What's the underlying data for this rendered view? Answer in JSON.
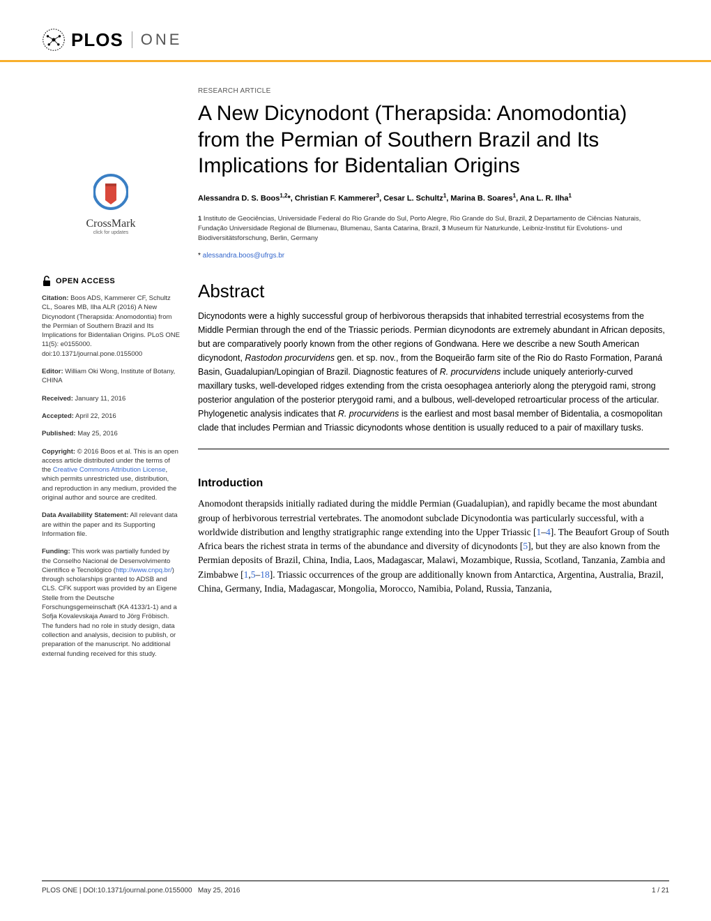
{
  "journal": {
    "logo_text": "PLOS",
    "name": "ONE"
  },
  "crossmark": {
    "label": "CrossMark",
    "sub": "click for updates"
  },
  "open_access": {
    "label": "OPEN ACCESS"
  },
  "sidebar": {
    "citation_label": "Citation:",
    "citation": " Boos ADS, Kammerer CF, Schultz CL, Soares MB, Ilha ALR (2016) A New Dicynodont (Therapsida: Anomodontia) from the Permian of Southern Brazil and Its Implications for Bidentalian Origins. PLoS ONE 11(5): e0155000. doi:10.1371/journal.pone.0155000",
    "editor_label": "Editor:",
    "editor": " William Oki Wong, Institute of Botany, CHINA",
    "received_label": "Received:",
    "received": " January 11, 2016",
    "accepted_label": "Accepted:",
    "accepted": " April 22, 2016",
    "published_label": "Published:",
    "published": " May 25, 2016",
    "copyright_label": "Copyright:",
    "copyright_pre": " © 2016 Boos et al. This is an open access article distributed under the terms of the ",
    "copyright_link": "Creative Commons Attribution License",
    "copyright_post": ", which permits unrestricted use, distribution, and reproduction in any medium, provided the original author and source are credited.",
    "data_label": "Data Availability Statement:",
    "data": " All relevant data are within the paper and its Supporting Information file.",
    "funding_label": "Funding:",
    "funding_pre": " This work was partially funded by the Conselho Nacional de Desenvolvimento Científico e Tecnológico (",
    "funding_link": "http://www.cnpq.br/",
    "funding_post": ") through scholarships granted to ADSB and CLS. CFK support was provided by an Eigene Stelle from the Deutsche Forschungsgemeinschaft (KA 4133/1-1) and a Sofja Kovalevskaja Award to Jörg Fröbisch. The funders had no role in study design, data collection and analysis, decision to publish, or preparation of the manuscript. No additional external funding received for this study."
  },
  "article": {
    "type": "RESEARCH ARTICLE",
    "title": "A New Dicynodont (Therapsida: Anomodontia) from the Permian of Southern Brazil and Its Implications for Bidentalian Origins",
    "authors_html": "Alessandra D. S. Boos<sup>1,2</sup>*, Christian F. Kammerer<sup>3</sup>, Cesar L. Schultz<sup>1</sup>, Marina B. Soares<sup>1</sup>, Ana L. R. Ilha<sup>1</sup>",
    "affiliations_html": "<b>1</b> Instituto de Geociências, Universidade Federal do Rio Grande do Sul, Porto Alegre, Rio Grande do Sul, Brazil, <b>2</b> Departamento de Ciências Naturais, Fundação Universidade Regional de Blumenau, Blumenau, Santa Catarina, Brazil, <b>3</b> Museum für Naturkunde, Leibniz-Institut für Evolutions- und Biodiversitätsforschung, Berlin, Germany",
    "corr_star": "* ",
    "corr_email": "alessandra.boos@ufrgs.br"
  },
  "abstract": {
    "heading": "Abstract",
    "text_html": "Dicynodonts were a highly successful group of herbivorous therapsids that inhabited terrestrial ecosystems from the Middle Permian through the end of the Triassic periods. Permian dicynodonts are extremely abundant in African deposits, but are comparatively poorly known from the other regions of Gondwana. Here we describe a new South American dicynodont, <i>Rastodon procurvidens</i> gen. et sp. nov., from the Boqueirão farm site of the Rio do Rasto Formation, Paraná Basin, Guadalupian/Lopingian of Brazil. Diagnostic features of <i>R. procurvidens</i> include uniquely anteriorly-curved maxillary tusks, well-developed ridges extending from the crista oesophagea anteriorly along the pterygoid rami, strong posterior angulation of the posterior pterygoid rami, and a bulbous, well-developed retroarticular process of the articular. Phylogenetic analysis indicates that <i>R. procurvidens</i> is the earliest and most basal member of Bidentalia, a cosmopolitan clade that includes Permian and Triassic dicynodonts whose dentition is usually reduced to a pair of maxillary tusks."
  },
  "intro": {
    "heading": "Introduction",
    "text_html": "Anomodont therapsids initially radiated during the middle Permian (Guadalupian), and rapidly became the most abundant group of herbivorous terrestrial vertebrates. The anomodont subclade Dicynodontia was particularly successful, with a worldwide distribution and lengthy stratigraphic range extending into the Upper Triassic [<a>1</a>–<a>4</a>]. The Beaufort Group of South Africa bears the richest strata in terms of the abundance and diversity of dicynodonts [<a>5</a>], but they are also known from the Permian deposits of Brazil, China, India, Laos, Madagascar, Malawi, Mozambique, Russia, Scotland, Tanzania, Zambia and Zimbabwe [<a>1</a>,<a>5</a>–<a>18</a>]. Triassic occurrences of the group are additionally known from Antarctica, Argentina, Australia, Brazil, China, Germany, India, Madagascar, Mongolia, Morocco, Namibia, Poland, Russia, Tanzania,"
  },
  "footer": {
    "left": "PLOS ONE | DOI:10.1371/journal.pone.0155000   May 25, 2016",
    "right": "1 / 21"
  },
  "colors": {
    "accent": "#f8af2c",
    "link": "#3366cc",
    "crossmark_ring": "#3a7fc4",
    "crossmark_book": "#d9483b"
  }
}
